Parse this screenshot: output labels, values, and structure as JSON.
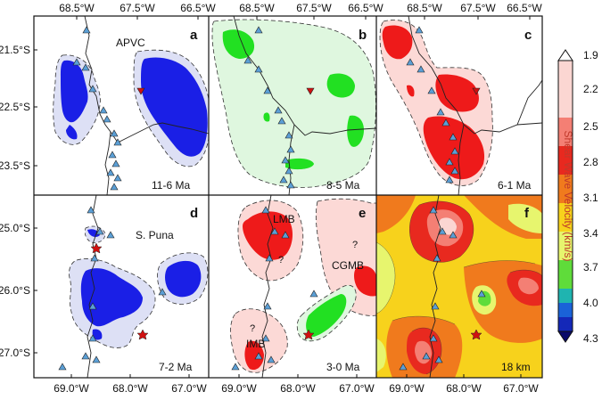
{
  "axes": {
    "top_lon_ticks": [
      "68.5°W",
      "67.5°W",
      "66.5°W"
    ],
    "bottom_lon_ticks": [
      "69.0°W",
      "68.0°W",
      "67.0°W"
    ],
    "top_lat_ticks": [
      "21.5°S",
      "22.5°S",
      "23.5°S"
    ],
    "bottom_lat_ticks": [
      "25.0°S",
      "26.0°S",
      "27.0°S"
    ]
  },
  "panels": {
    "a": {
      "label": "a",
      "age": "11-6 Ma",
      "region": "APVC"
    },
    "b": {
      "label": "b",
      "age": "8-5 Ma"
    },
    "c": {
      "label": "c",
      "age": "6-1 Ma"
    },
    "d": {
      "label": "d",
      "age": "7-2 Ma",
      "region": "S. Puna"
    },
    "e": {
      "label": "e",
      "age": "3-0 Ma",
      "lmb": "LMB",
      "cgmb": "CGMB",
      "imb": "IMB",
      "q": "?"
    },
    "f": {
      "label": "f",
      "depth": "18 km"
    }
  },
  "colorbar": {
    "title": "Shear Wave Velocity (km/s)",
    "ticks": [
      "1.9",
      "2.2",
      "2.5",
      "2.8",
      "3.1",
      "3.4",
      "3.7",
      "4.0",
      "4.3"
    ],
    "colors": [
      "#ffffff",
      "#fbd6d2",
      "#f47f74",
      "#e8291f",
      "#f07a1d",
      "#f7d21c",
      "#e7f56e",
      "#5fdc3a",
      "#1fb4b0",
      "#1a62d8",
      "#1428b8",
      "#0a0a6a"
    ]
  },
  "styles": {
    "blue_fill": "#1a1fe6",
    "blue_halo": "#dde0f5",
    "green_fill": "#22e022",
    "green_halo": "#dff7df",
    "red_fill": "#ee1a1a",
    "red_halo": "#fcd9d6",
    "triangle": "#5b9fd6",
    "red_marker": "#d01010"
  }
}
